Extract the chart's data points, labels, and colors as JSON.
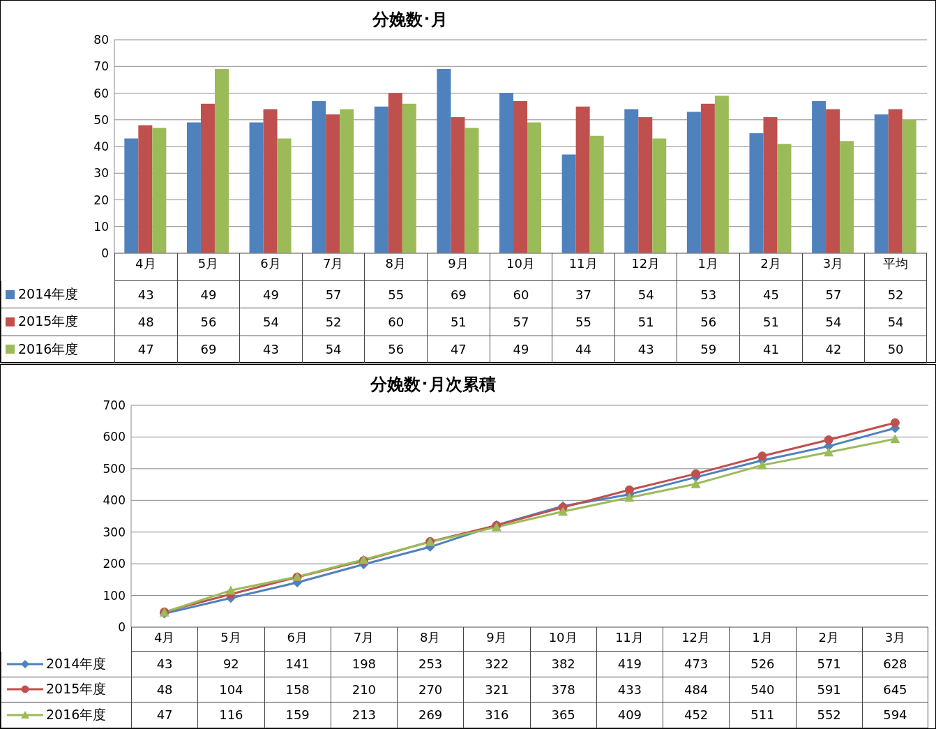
{
  "chart_data": [
    {
      "type": "bar",
      "title": "分娩数･月",
      "categories": [
        "4月",
        "5月",
        "6月",
        "7月",
        "8月",
        "9月",
        "10月",
        "11月",
        "12月",
        "1月",
        "2月",
        "3月",
        "平均"
      ],
      "series": [
        {
          "name": "2014年度",
          "color": "#4f81bd",
          "values": [
            43,
            49,
            49,
            57,
            55,
            69,
            60,
            37,
            54,
            53,
            45,
            57,
            52
          ]
        },
        {
          "name": "2015年度",
          "color": "#c0504d",
          "values": [
            48,
            56,
            54,
            52,
            60,
            51,
            57,
            55,
            51,
            56,
            51,
            54,
            54
          ]
        },
        {
          "name": "2016年度",
          "color": "#9bbb59",
          "values": [
            47,
            69,
            43,
            54,
            56,
            47,
            49,
            44,
            43,
            59,
            41,
            42,
            50
          ]
        }
      ],
      "ylim": [
        0,
        80
      ],
      "yticks": [
        0,
        10,
        20,
        30,
        40,
        50,
        60,
        70,
        80
      ],
      "grid": "y",
      "legend": "bottom left",
      "data_labels": true
    },
    {
      "type": "line",
      "title": "分娩数･月次累積",
      "categories": [
        "4月",
        "5月",
        "6月",
        "7月",
        "8月",
        "9月",
        "10月",
        "11月",
        "12月",
        "1月",
        "2月",
        "3月"
      ],
      "series": [
        {
          "name": "2014年度",
          "color": "#4f81bd",
          "marker": "diamond",
          "values": [
            43,
            92,
            141,
            198,
            253,
            322,
            382,
            419,
            473,
            526,
            571,
            628
          ]
        },
        {
          "name": "2015年度",
          "color": "#c0504d",
          "marker": "circle",
          "values": [
            48,
            104,
            158,
            210,
            270,
            321,
            378,
            433,
            484,
            540,
            591,
            645
          ]
        },
        {
          "name": "2016年度",
          "color": "#9bbb59",
          "marker": "triangle",
          "values": [
            47,
            116,
            159,
            213,
            269,
            316,
            365,
            409,
            452,
            511,
            552,
            594
          ]
        }
      ],
      "ylim": [
        0,
        700
      ],
      "yticks": [
        0,
        100,
        200,
        300,
        400,
        500,
        600,
        700
      ],
      "grid": "y",
      "legend": "bottom left",
      "data_labels": true
    }
  ]
}
